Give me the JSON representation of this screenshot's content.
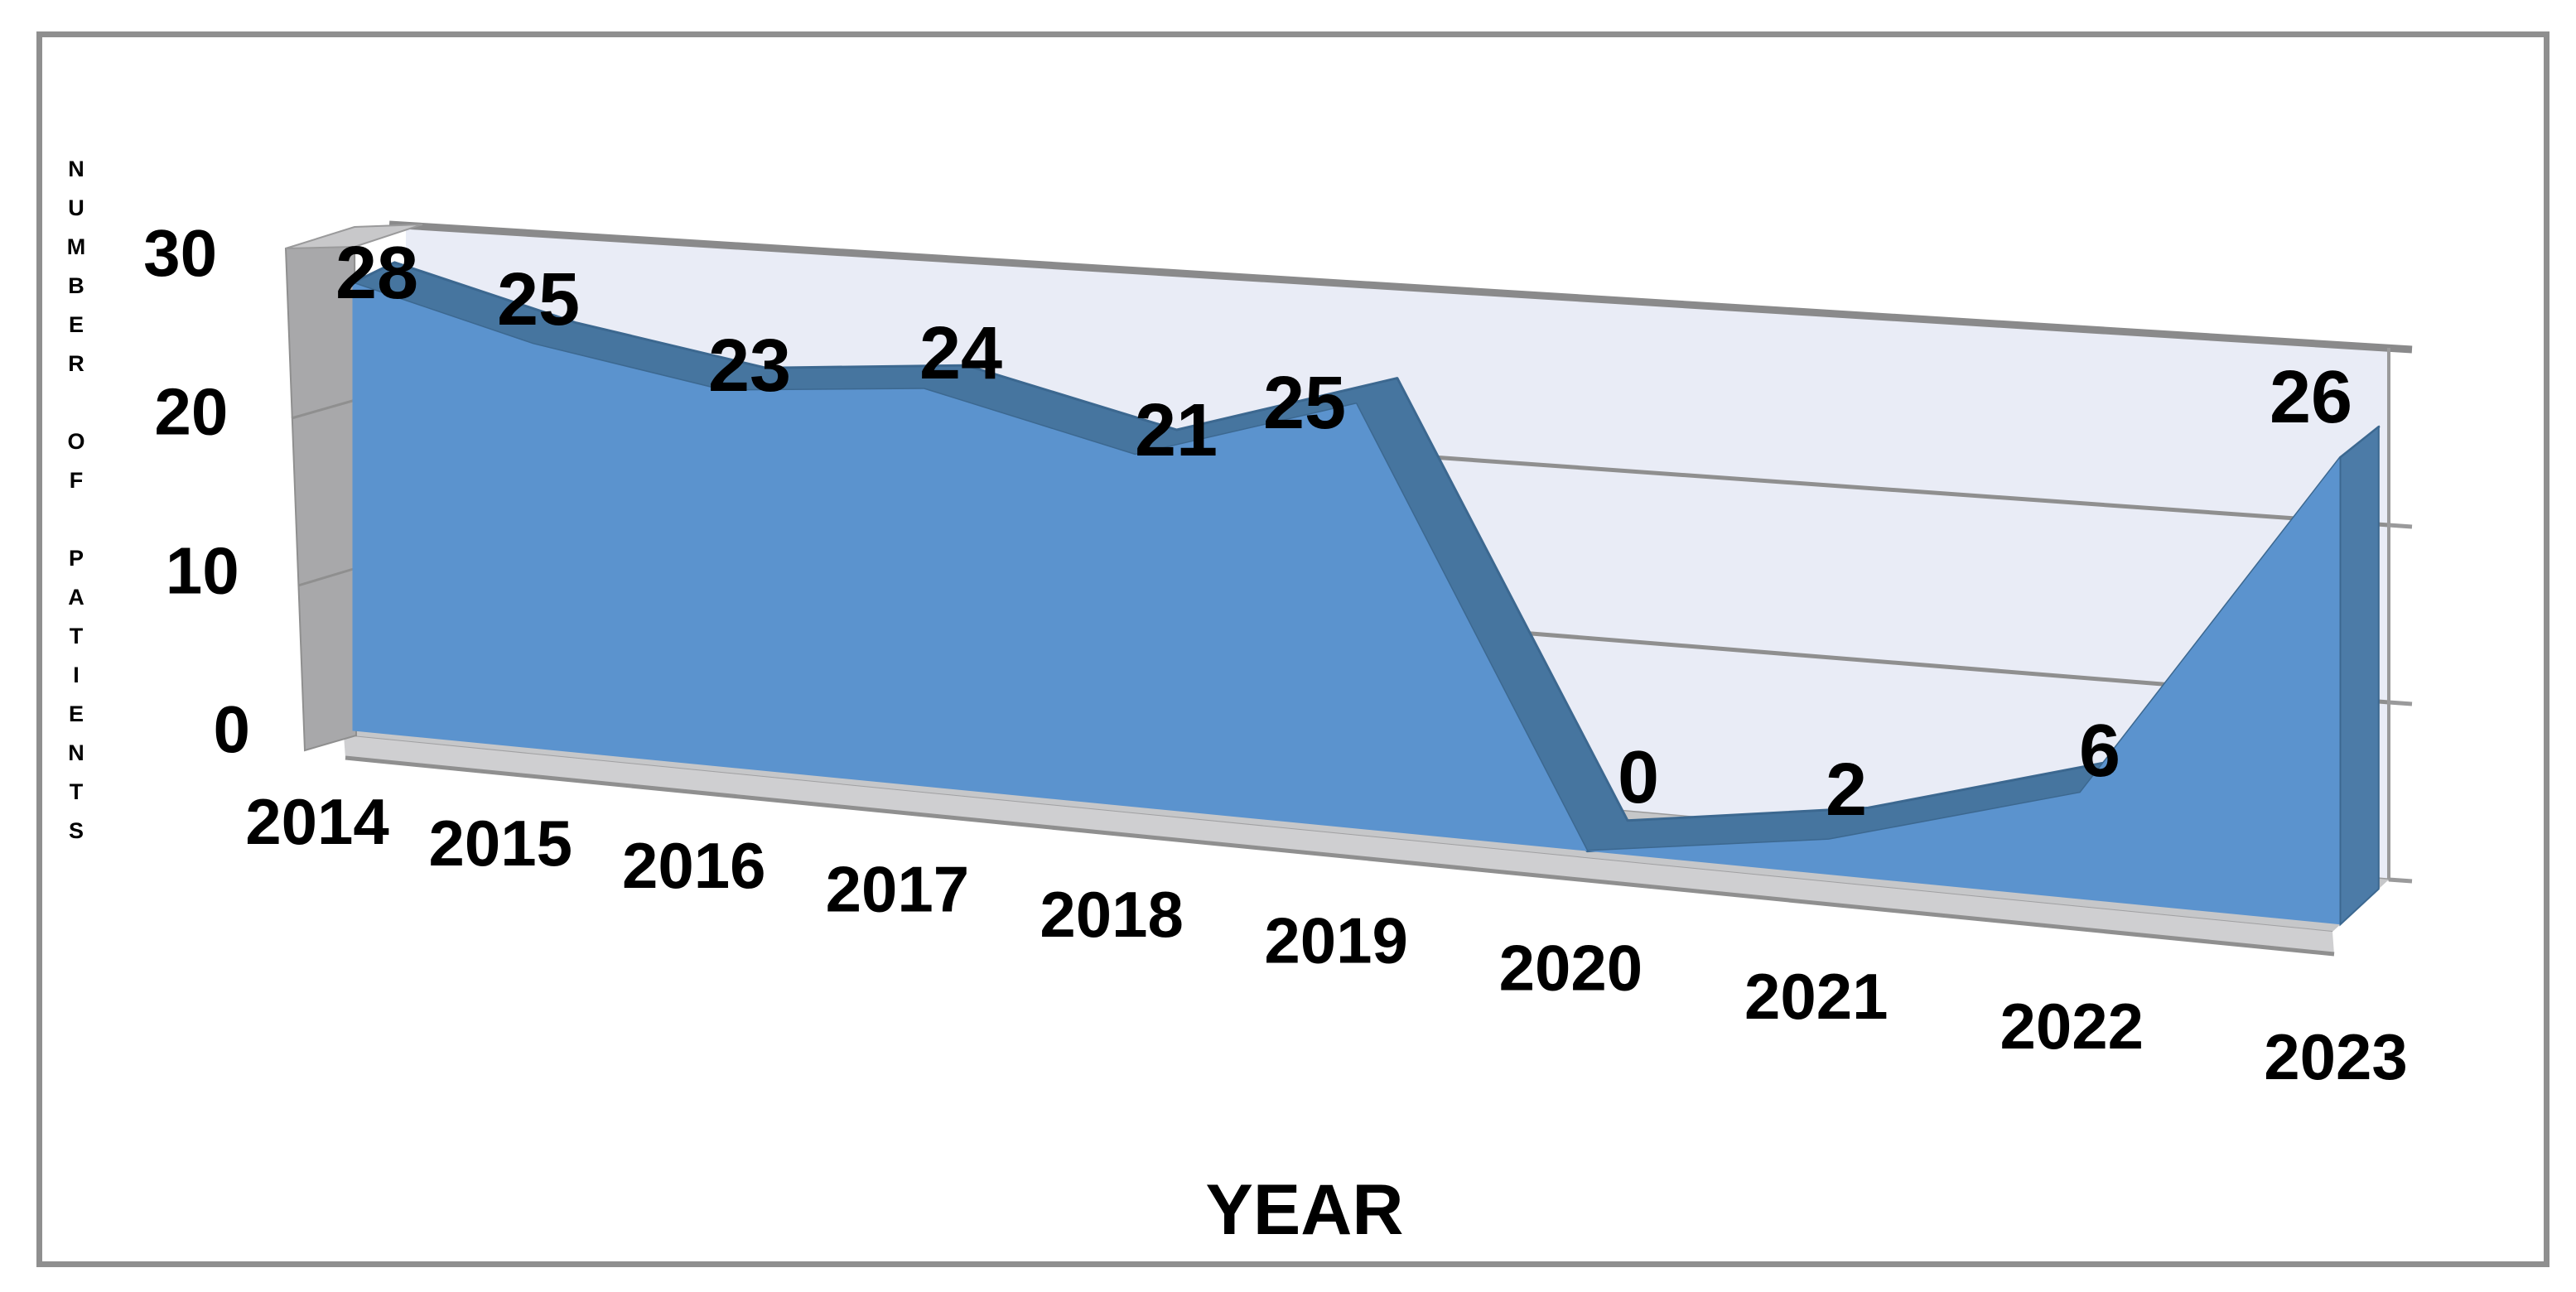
{
  "chart_data": {
    "type": "area",
    "style": "3d-area",
    "title": "",
    "xlabel": "YEAR",
    "ylabel": "NUMBER OF PATIENTS",
    "categories": [
      "2014",
      "2015",
      "2016",
      "2017",
      "2018",
      "2019",
      "2020",
      "2021",
      "2022",
      "2023"
    ],
    "values": [
      28,
      25,
      23,
      24,
      21,
      25,
      0,
      2,
      6,
      26
    ],
    "data_labels_shown": true,
    "yticks": [
      30,
      20,
      10,
      0
    ],
    "ylim": [
      0,
      30
    ],
    "grid": "horizontal-back-wall",
    "legend": "none",
    "colors": {
      "area_front": "#5b93ce",
      "area_top_band": "#46759f",
      "area_side": "#4c7ba7",
      "area_edge": "#3c6890",
      "back_wall": "#e9ecf6",
      "gridline": "#8f8f8f",
      "side_wall": "#a8a8aa",
      "wall_top_slab": "#c8c8ca",
      "floor": "#c6c7c9",
      "floor_front": "#cfcfd1",
      "frame_border": "#8f8f8f",
      "label_text": "#000000"
    }
  }
}
